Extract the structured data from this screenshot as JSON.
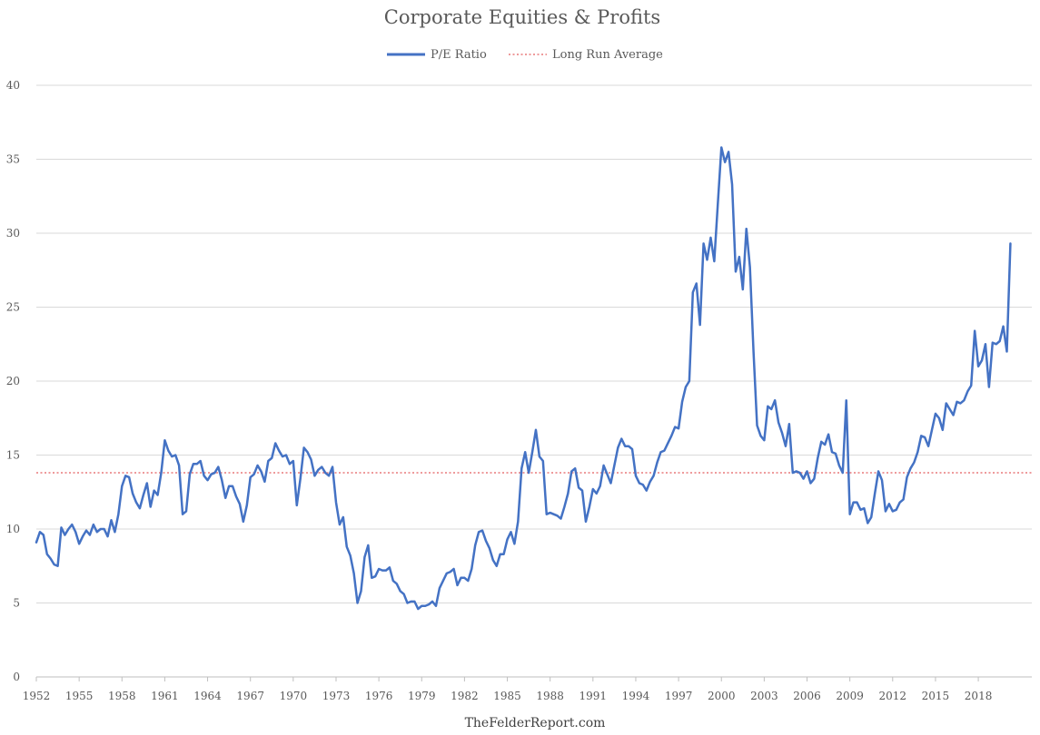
{
  "chart_data": {
    "type": "line",
    "title": "Corporate Equities & Profits",
    "source_text": "TheFelderReport.com",
    "xlabel": "",
    "ylabel": "",
    "xlim": [
      1952,
      2021.75
    ],
    "ylim": [
      0,
      40
    ],
    "y_ticks": [
      0,
      5,
      10,
      15,
      20,
      25,
      30,
      35,
      40
    ],
    "x_tick_labels": [
      "1952",
      "1955",
      "1958",
      "1961",
      "1964",
      "1967",
      "1970",
      "1973",
      "1976",
      "1979",
      "1982",
      "1985",
      "1988",
      "1991",
      "1994",
      "1997",
      "2000",
      "2003",
      "2006",
      "2009",
      "2012",
      "2015",
      "2018"
    ],
    "grid": "horizontal",
    "legend_position": "top-center",
    "colors": {
      "pe_ratio": "#4472c4",
      "long_run_average": "#e8787a",
      "text": "#595959"
    },
    "series": [
      {
        "name": "P/E Ratio",
        "style": "solid",
        "points": [
          [
            1952.0,
            9.1
          ],
          [
            1952.25,
            9.8
          ],
          [
            1952.5,
            9.6
          ],
          [
            1952.75,
            8.3
          ],
          [
            1953.0,
            8.0
          ],
          [
            1953.25,
            7.6
          ],
          [
            1953.5,
            7.5
          ],
          [
            1953.75,
            10.1
          ],
          [
            1954.0,
            9.6
          ],
          [
            1954.25,
            10.0
          ],
          [
            1954.5,
            10.3
          ],
          [
            1954.75,
            9.8
          ],
          [
            1955.0,
            9.0
          ],
          [
            1955.25,
            9.5
          ],
          [
            1955.5,
            9.9
          ],
          [
            1955.75,
            9.6
          ],
          [
            1956.0,
            10.3
          ],
          [
            1956.25,
            9.8
          ],
          [
            1956.5,
            10.0
          ],
          [
            1956.75,
            10.0
          ],
          [
            1957.0,
            9.5
          ],
          [
            1957.25,
            10.6
          ],
          [
            1957.5,
            9.8
          ],
          [
            1957.75,
            11.0
          ],
          [
            1958.0,
            12.9
          ],
          [
            1958.25,
            13.6
          ],
          [
            1958.5,
            13.5
          ],
          [
            1958.75,
            12.4
          ],
          [
            1959.0,
            11.8
          ],
          [
            1959.25,
            11.4
          ],
          [
            1959.5,
            12.3
          ],
          [
            1959.75,
            13.1
          ],
          [
            1960.0,
            11.5
          ],
          [
            1960.25,
            12.6
          ],
          [
            1960.5,
            12.3
          ],
          [
            1960.75,
            13.8
          ],
          [
            1961.0,
            16.0
          ],
          [
            1961.25,
            15.3
          ],
          [
            1961.5,
            14.9
          ],
          [
            1961.75,
            15.0
          ],
          [
            1962.0,
            14.3
          ],
          [
            1962.25,
            11.0
          ],
          [
            1962.5,
            11.2
          ],
          [
            1962.75,
            13.7
          ],
          [
            1963.0,
            14.4
          ],
          [
            1963.25,
            14.4
          ],
          [
            1963.5,
            14.6
          ],
          [
            1963.75,
            13.6
          ],
          [
            1964.0,
            13.3
          ],
          [
            1964.25,
            13.7
          ],
          [
            1964.5,
            13.8
          ],
          [
            1964.75,
            14.2
          ],
          [
            1965.0,
            13.3
          ],
          [
            1965.25,
            12.1
          ],
          [
            1965.5,
            12.9
          ],
          [
            1965.75,
            12.9
          ],
          [
            1966.0,
            12.2
          ],
          [
            1966.25,
            11.7
          ],
          [
            1966.5,
            10.5
          ],
          [
            1966.75,
            11.6
          ],
          [
            1967.0,
            13.5
          ],
          [
            1967.25,
            13.7
          ],
          [
            1967.5,
            14.3
          ],
          [
            1967.75,
            13.9
          ],
          [
            1968.0,
            13.2
          ],
          [
            1968.25,
            14.6
          ],
          [
            1968.5,
            14.8
          ],
          [
            1968.75,
            15.8
          ],
          [
            1969.0,
            15.3
          ],
          [
            1969.25,
            14.9
          ],
          [
            1969.5,
            15.0
          ],
          [
            1969.75,
            14.4
          ],
          [
            1970.0,
            14.6
          ],
          [
            1970.25,
            11.6
          ],
          [
            1970.5,
            13.4
          ],
          [
            1970.75,
            15.5
          ],
          [
            1971.0,
            15.2
          ],
          [
            1971.25,
            14.7
          ],
          [
            1971.5,
            13.6
          ],
          [
            1971.75,
            14.0
          ],
          [
            1972.0,
            14.2
          ],
          [
            1972.25,
            13.8
          ],
          [
            1972.5,
            13.6
          ],
          [
            1972.75,
            14.2
          ],
          [
            1973.0,
            11.8
          ],
          [
            1973.25,
            10.3
          ],
          [
            1973.5,
            10.8
          ],
          [
            1973.75,
            8.8
          ],
          [
            1974.0,
            8.2
          ],
          [
            1974.25,
            7.0
          ],
          [
            1974.5,
            5.0
          ],
          [
            1974.75,
            5.8
          ],
          [
            1975.0,
            8.1
          ],
          [
            1975.25,
            8.9
          ],
          [
            1975.5,
            6.7
          ],
          [
            1975.75,
            6.8
          ],
          [
            1976.0,
            7.3
          ],
          [
            1976.25,
            7.2
          ],
          [
            1976.5,
            7.2
          ],
          [
            1976.75,
            7.4
          ],
          [
            1977.0,
            6.5
          ],
          [
            1977.25,
            6.3
          ],
          [
            1977.5,
            5.8
          ],
          [
            1977.75,
            5.6
          ],
          [
            1978.0,
            5.0
          ],
          [
            1978.25,
            5.1
          ],
          [
            1978.5,
            5.1
          ],
          [
            1978.75,
            4.6
          ],
          [
            1979.0,
            4.8
          ],
          [
            1979.25,
            4.8
          ],
          [
            1979.5,
            4.9
          ],
          [
            1979.75,
            5.1
          ],
          [
            1980.0,
            4.8
          ],
          [
            1980.25,
            6.0
          ],
          [
            1980.5,
            6.5
          ],
          [
            1980.75,
            7.0
          ],
          [
            1981.0,
            7.1
          ],
          [
            1981.25,
            7.3
          ],
          [
            1981.5,
            6.2
          ],
          [
            1981.75,
            6.7
          ],
          [
            1982.0,
            6.7
          ],
          [
            1982.25,
            6.5
          ],
          [
            1982.5,
            7.3
          ],
          [
            1982.75,
            8.9
          ],
          [
            1983.0,
            9.8
          ],
          [
            1983.25,
            9.9
          ],
          [
            1983.5,
            9.2
          ],
          [
            1983.75,
            8.7
          ],
          [
            1984.0,
            7.9
          ],
          [
            1984.25,
            7.5
          ],
          [
            1984.5,
            8.3
          ],
          [
            1984.75,
            8.3
          ],
          [
            1985.0,
            9.3
          ],
          [
            1985.25,
            9.8
          ],
          [
            1985.5,
            9.0
          ],
          [
            1985.75,
            10.5
          ],
          [
            1986.0,
            14.1
          ],
          [
            1986.25,
            15.2
          ],
          [
            1986.5,
            13.8
          ],
          [
            1986.75,
            15.2
          ],
          [
            1987.0,
            16.7
          ],
          [
            1987.25,
            14.9
          ],
          [
            1987.5,
            14.6
          ],
          [
            1987.75,
            11.0
          ],
          [
            1988.0,
            11.1
          ],
          [
            1988.25,
            11.0
          ],
          [
            1988.5,
            10.9
          ],
          [
            1988.75,
            10.7
          ],
          [
            1989.0,
            11.5
          ],
          [
            1989.25,
            12.4
          ],
          [
            1989.5,
            13.9
          ],
          [
            1989.75,
            14.1
          ],
          [
            1990.0,
            12.8
          ],
          [
            1990.25,
            12.6
          ],
          [
            1990.5,
            10.5
          ],
          [
            1990.75,
            11.5
          ],
          [
            1991.0,
            12.7
          ],
          [
            1991.25,
            12.4
          ],
          [
            1991.5,
            12.9
          ],
          [
            1991.75,
            14.3
          ],
          [
            1992.0,
            13.7
          ],
          [
            1992.25,
            13.1
          ],
          [
            1992.5,
            14.3
          ],
          [
            1992.75,
            15.5
          ],
          [
            1993.0,
            16.1
          ],
          [
            1993.25,
            15.6
          ],
          [
            1993.5,
            15.6
          ],
          [
            1993.75,
            15.4
          ],
          [
            1994.0,
            13.6
          ],
          [
            1994.25,
            13.1
          ],
          [
            1994.5,
            13.0
          ],
          [
            1994.75,
            12.6
          ],
          [
            1995.0,
            13.2
          ],
          [
            1995.25,
            13.6
          ],
          [
            1995.5,
            14.5
          ],
          [
            1995.75,
            15.2
          ],
          [
            1996.0,
            15.3
          ],
          [
            1996.25,
            15.8
          ],
          [
            1996.5,
            16.3
          ],
          [
            1996.75,
            16.9
          ],
          [
            1997.0,
            16.8
          ],
          [
            1997.25,
            18.6
          ],
          [
            1997.5,
            19.6
          ],
          [
            1997.75,
            20.0
          ],
          [
            1998.0,
            26.0
          ],
          [
            1998.25,
            26.6
          ],
          [
            1998.5,
            23.8
          ],
          [
            1998.75,
            29.3
          ],
          [
            1999.0,
            28.2
          ],
          [
            1999.25,
            29.7
          ],
          [
            1999.5,
            28.1
          ],
          [
            1999.75,
            32.0
          ],
          [
            2000.0,
            35.8
          ],
          [
            2000.25,
            34.8
          ],
          [
            2000.5,
            35.5
          ],
          [
            2000.75,
            33.3
          ],
          [
            2001.0,
            27.4
          ],
          [
            2001.25,
            28.4
          ],
          [
            2001.5,
            26.2
          ],
          [
            2001.75,
            30.3
          ],
          [
            2002.0,
            27.7
          ],
          [
            2002.25,
            22.0
          ],
          [
            2002.5,
            17.0
          ],
          [
            2002.75,
            16.3
          ],
          [
            2003.0,
            16.0
          ],
          [
            2003.25,
            18.3
          ],
          [
            2003.5,
            18.1
          ],
          [
            2003.75,
            18.7
          ],
          [
            2004.0,
            17.2
          ],
          [
            2004.25,
            16.5
          ],
          [
            2004.5,
            15.6
          ],
          [
            2004.75,
            17.1
          ],
          [
            2005.0,
            13.8
          ],
          [
            2005.25,
            13.9
          ],
          [
            2005.5,
            13.8
          ],
          [
            2005.75,
            13.4
          ],
          [
            2006.0,
            13.9
          ],
          [
            2006.25,
            13.1
          ],
          [
            2006.5,
            13.4
          ],
          [
            2006.75,
            14.8
          ],
          [
            2007.0,
            15.9
          ],
          [
            2007.25,
            15.7
          ],
          [
            2007.5,
            16.4
          ],
          [
            2007.75,
            15.2
          ],
          [
            2008.0,
            15.1
          ],
          [
            2008.25,
            14.3
          ],
          [
            2008.5,
            13.8
          ],
          [
            2008.75,
            18.7
          ],
          [
            2009.0,
            11.0
          ],
          [
            2009.25,
            11.8
          ],
          [
            2009.5,
            11.8
          ],
          [
            2009.75,
            11.3
          ],
          [
            2010.0,
            11.4
          ],
          [
            2010.25,
            10.4
          ],
          [
            2010.5,
            10.8
          ],
          [
            2010.75,
            12.4
          ],
          [
            2011.0,
            13.9
          ],
          [
            2011.25,
            13.3
          ],
          [
            2011.5,
            11.2
          ],
          [
            2011.75,
            11.7
          ],
          [
            2012.0,
            11.2
          ],
          [
            2012.25,
            11.3
          ],
          [
            2012.5,
            11.8
          ],
          [
            2012.75,
            12.0
          ],
          [
            2013.0,
            13.5
          ],
          [
            2013.25,
            14.1
          ],
          [
            2013.5,
            14.5
          ],
          [
            2013.75,
            15.2
          ],
          [
            2014.0,
            16.3
          ],
          [
            2014.25,
            16.2
          ],
          [
            2014.5,
            15.6
          ],
          [
            2014.75,
            16.7
          ],
          [
            2015.0,
            17.8
          ],
          [
            2015.25,
            17.5
          ],
          [
            2015.5,
            16.7
          ],
          [
            2015.75,
            18.5
          ],
          [
            2016.0,
            18.1
          ],
          [
            2016.25,
            17.7
          ],
          [
            2016.5,
            18.6
          ],
          [
            2016.75,
            18.5
          ],
          [
            2017.0,
            18.7
          ],
          [
            2017.25,
            19.3
          ],
          [
            2017.5,
            19.7
          ],
          [
            2017.75,
            23.4
          ],
          [
            2018.0,
            21.0
          ],
          [
            2018.25,
            21.4
          ],
          [
            2018.5,
            22.5
          ],
          [
            2018.75,
            19.6
          ],
          [
            2019.0,
            22.6
          ],
          [
            2019.25,
            22.5
          ],
          [
            2019.5,
            22.7
          ],
          [
            2019.75,
            23.7
          ],
          [
            2020.0,
            22.0
          ],
          [
            2020.25,
            29.3
          ]
        ]
      },
      {
        "name": "Long Run Average",
        "style": "dotted",
        "value": 13.8
      }
    ]
  }
}
